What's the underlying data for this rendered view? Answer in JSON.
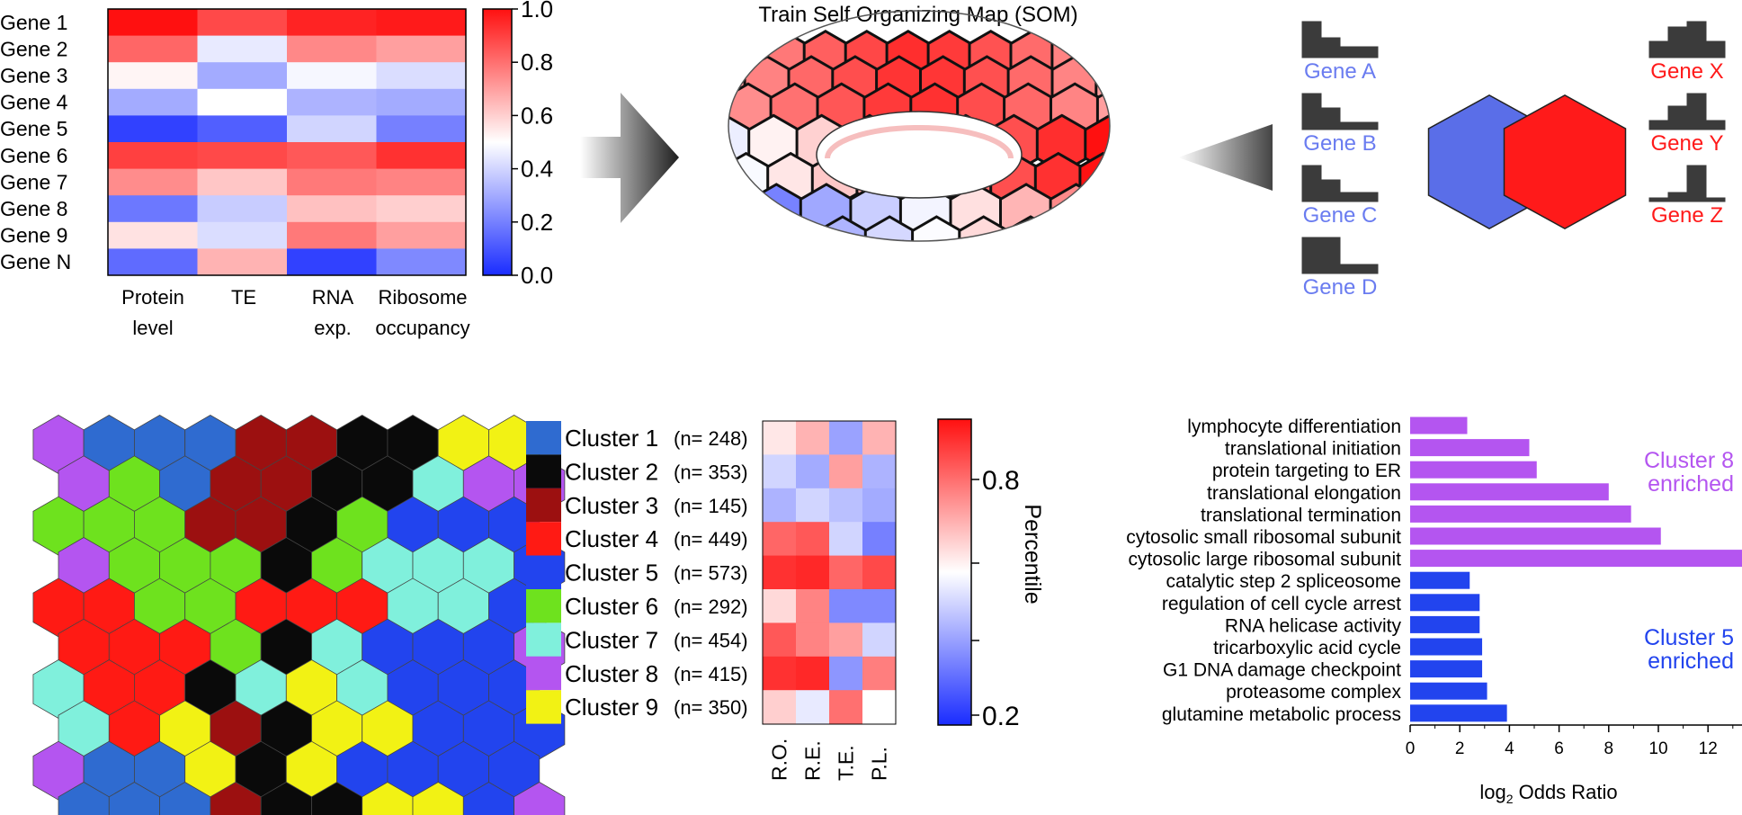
{
  "panel_a": {
    "genes": [
      "Gene 1",
      "Gene 2",
      "Gene 3",
      "Gene 4",
      "Gene 5",
      "Gene 6",
      "Gene 7",
      "Gene 8",
      "Gene 9",
      "Gene N"
    ],
    "columns": [
      {
        "line1": "Protein",
        "line2": "level"
      },
      {
        "line1": "TE",
        "line2": ""
      },
      {
        "line1": "RNA",
        "line2": "exp."
      },
      {
        "line1": "Ribosome",
        "line2": "occupancy"
      }
    ],
    "matrix": [
      [
        1.0,
        0.88,
        0.96,
        0.98
      ],
      [
        0.82,
        0.45,
        0.75,
        0.7
      ],
      [
        0.52,
        0.3,
        0.48,
        0.42
      ],
      [
        0.3,
        0.5,
        0.32,
        0.3
      ],
      [
        0.05,
        0.12,
        0.4,
        0.2
      ],
      [
        0.9,
        0.88,
        0.85,
        0.93
      ],
      [
        0.74,
        0.62,
        0.78,
        0.76
      ],
      [
        0.18,
        0.38,
        0.63,
        0.6
      ],
      [
        0.56,
        0.42,
        0.78,
        0.7
      ],
      [
        0.15,
        0.66,
        0.05,
        0.22
      ]
    ],
    "colorbar_ticks": [
      "1.0",
      "0.8",
      "0.6",
      "0.4",
      "0.2",
      "0.0"
    ]
  },
  "som_title": "Train Self Organizing Map (SOM)",
  "histograms": {
    "left": [
      {
        "label": "Gene A",
        "bars": [
          1.0,
          0.55,
          0.3,
          0.3
        ]
      },
      {
        "label": "Gene B",
        "bars": [
          1.0,
          0.6,
          0.2,
          0.2
        ]
      },
      {
        "label": "Gene C",
        "bars": [
          1.0,
          0.6,
          0.25,
          0.25
        ]
      },
      {
        "label": "Gene D",
        "bars": [
          1.0,
          1.0,
          0.25,
          0.25
        ]
      }
    ],
    "right": [
      {
        "label": "Gene X",
        "bars": [
          0.45,
          0.85,
          1.0,
          0.45
        ]
      },
      {
        "label": "Gene Y",
        "bars": [
          0.25,
          0.65,
          1.0,
          0.25
        ]
      },
      {
        "label": "Gene Z",
        "bars": [
          0.1,
          0.25,
          1.0,
          0.1
        ]
      }
    ],
    "left_color": "#6a7cf0",
    "right_color": "#ff1a1a"
  },
  "hex_pair": {
    "left_color": "#5a6ee8",
    "right_color": "#ff1a1a"
  },
  "cluster_colors": [
    "#2f6bd0",
    "#0a0a0a",
    "#9c1010",
    "#ff1a14",
    "#2244ee",
    "#6ee21e",
    "#80f0dc",
    "#b455f0",
    "#f2f214"
  ],
  "clusters": [
    {
      "label": "Cluster 1",
      "n": "(n= 248)",
      "color": "#2f6bd0"
    },
    {
      "label": "Cluster 2",
      "n": "(n= 353)",
      "color": "#0a0a0a"
    },
    {
      "label": "Cluster 3",
      "n": "(n= 145)",
      "color": "#9c1010"
    },
    {
      "label": "Cluster 4",
      "n": "(n= 449)",
      "color": "#ff1a14"
    },
    {
      "label": "Cluster 5",
      "n": "(n= 573)",
      "color": "#2244ee"
    },
    {
      "label": "Cluster 6",
      "n": "(n= 292)",
      "color": "#6ee21e"
    },
    {
      "label": "Cluster 7",
      "n": "(n= 454)",
      "color": "#80f0dc"
    },
    {
      "label": "Cluster 8",
      "n": "(n= 415)",
      "color": "#b455f0"
    },
    {
      "label": "Cluster 9",
      "n": "(n= 350)",
      "color": "#f2f214"
    }
  ],
  "som_map": [
    "8111332299",
    "8613322788",
    "6663326555",
    "8666267775",
    "4466444775",
    "4446275558",
    "7442797555",
    "7493299555",
    "8119295555",
    "1113229958"
  ],
  "percentile_heatmap": {
    "columns": [
      "R.O.",
      "R.E.",
      "T.E.",
      "P.L."
    ],
    "values": [
      [
        0.55,
        0.66,
        0.28,
        0.66
      ],
      [
        0.4,
        0.3,
        0.7,
        0.32
      ],
      [
        0.32,
        0.4,
        0.35,
        0.3
      ],
      [
        0.82,
        0.85,
        0.4,
        0.2
      ],
      [
        0.93,
        0.95,
        0.82,
        0.88
      ],
      [
        0.58,
        0.76,
        0.22,
        0.22
      ],
      [
        0.85,
        0.76,
        0.7,
        0.4
      ],
      [
        0.93,
        0.95,
        0.25,
        0.77
      ],
      [
        0.6,
        0.45,
        0.8,
        0.5
      ]
    ],
    "colorbar_label": "Percentile",
    "colorbar_ticks": [
      "0.8",
      "0.2"
    ]
  },
  "chart_data": {
    "type": "bar",
    "orientation": "horizontal",
    "xlabel": "log",
    "xlabel_subscript": "2",
    "xlabel_rest": " Odds Ratio",
    "xlim": [
      0,
      13.5
    ],
    "xticks": [
      "0",
      "2",
      "4",
      "6",
      "8",
      "10",
      "12"
    ],
    "categories": [
      "lymphocyte differentiation",
      "translational initiation",
      "protein targeting to ER",
      "translational elongation",
      "translational termination",
      "cytosolic small ribosomal subunit",
      "cytosolic large ribosomal subunit",
      "catalytic step 2 spliceosome",
      "regulation of cell cycle arrest",
      "RNA helicase activity",
      "tricarboxylic acid cycle",
      "G1 DNA damage checkpoint",
      "proteasome complex",
      "glutamine metabolic process"
    ],
    "values": [
      2.3,
      4.8,
      5.1,
      8.0,
      8.9,
      10.1,
      13.5,
      2.4,
      2.8,
      2.8,
      2.9,
      2.9,
      3.1,
      3.9
    ],
    "groups": [
      8,
      8,
      8,
      8,
      8,
      8,
      8,
      5,
      5,
      5,
      5,
      5,
      5,
      5
    ],
    "group_colors": {
      "8": "#b455f0",
      "5": "#2244ee"
    },
    "annotations": [
      {
        "line1": "Cluster 8",
        "line2": "enriched",
        "color": "#b455f0"
      },
      {
        "line1": "Cluster 5",
        "line2": "enriched",
        "color": "#2244ee"
      }
    ]
  }
}
